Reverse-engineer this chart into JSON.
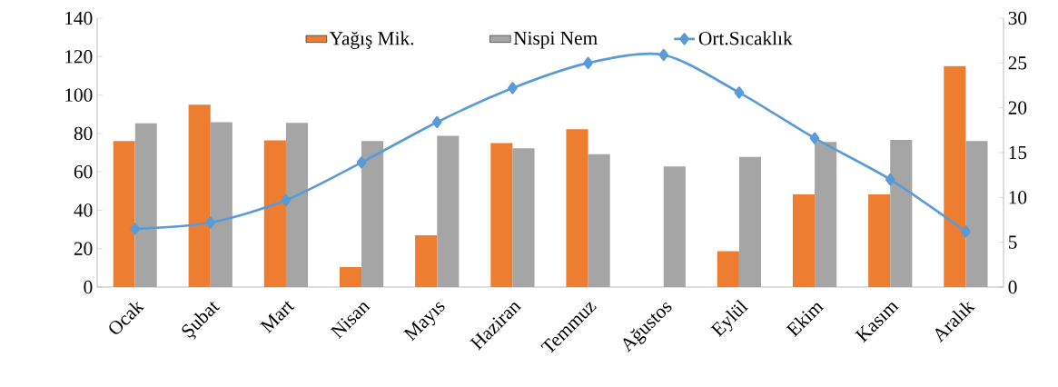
{
  "chart_data": {
    "type": "bar",
    "categories": [
      "Ocak",
      "Şubat",
      "Mart",
      "Nisan",
      "Mayıs",
      "Haziran",
      "Temmuz",
      "Ağustos",
      "Eylül",
      "Ekim",
      "Kasım",
      "Aralık"
    ],
    "series": [
      {
        "name": "Yağış Mik.",
        "color": "#ed7d31",
        "values": [
          76,
          95,
          76.4,
          10.4,
          27,
          75,
          82.2,
          0,
          18.7,
          48.2,
          48.2,
          115
        ]
      },
      {
        "name": "Nispi Nem",
        "color": "#a5a5a5",
        "values": [
          85.3,
          85.8,
          85.5,
          76,
          78.7,
          72.2,
          69.2,
          62.8,
          67.8,
          75.6,
          76.6,
          76
        ]
      },
      {
        "name": "Ort.Sıcaklık",
        "type": "line",
        "axis": "y2",
        "color": "#5b9bd5",
        "values": [
          6.5,
          7.2,
          9.7,
          13.9,
          18.4,
          22.2,
          25,
          25.9,
          21.7,
          16.6,
          12,
          6.2
        ]
      }
    ],
    "ylim": [
      0,
      140
    ],
    "yticks": [
      0,
      20,
      40,
      60,
      80,
      100,
      120,
      140
    ],
    "y2lim": [
      0,
      30
    ],
    "y2ticks": [
      0,
      5,
      10,
      15,
      20,
      25,
      30
    ],
    "legend": "top",
    "marker": "diamond",
    "line_style": "solid"
  }
}
